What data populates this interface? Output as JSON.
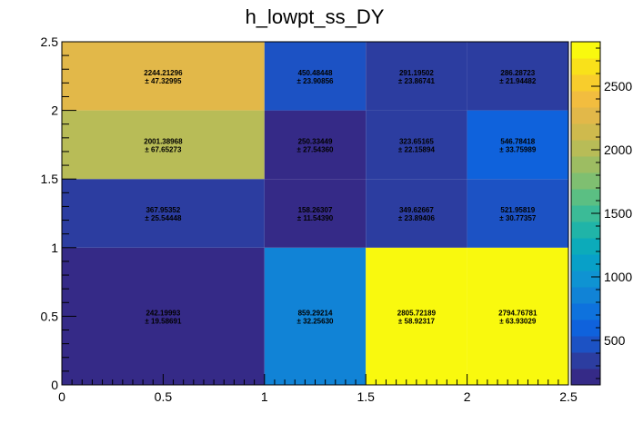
{
  "chart_data": {
    "type": "heatmap",
    "title": "h_lowpt_ss_DY",
    "xlabel": "",
    "ylabel": "",
    "xlim": [
      0,
      2.5
    ],
    "ylim": [
      0,
      2.5
    ],
    "x_ticks": [
      "0",
      "0.5",
      "1",
      "1.5",
      "2",
      "2.5"
    ],
    "y_ticks": [
      "0",
      "0.5",
      "1",
      "1.5",
      "2",
      "2.5"
    ],
    "x_edges": [
      0,
      1,
      1.5,
      2,
      2.5
    ],
    "y_edges": [
      0,
      1,
      1.5,
      2,
      2.5
    ],
    "z_range": [
      150,
      2850
    ],
    "colorbar_ticks": [
      "500",
      "1000",
      "1500",
      "2000",
      "2500"
    ],
    "colorbar_tick_values": [
      500,
      1000,
      1500,
      2000,
      2500
    ],
    "palette": [
      "#352a87",
      "#2c3da0",
      "#1c52c4",
      "#0f62dc",
      "#0e72dd",
      "#1183d6",
      "#0f93d2",
      "#08a0c8",
      "#0cabba",
      "#20b4a8",
      "#3bbb97",
      "#5bbf83",
      "#7fbf71",
      "#9dbd62",
      "#b8bc57",
      "#cfba4d",
      "#e2b849",
      "#f2bd3f",
      "#f8cd2c",
      "#f9e11a",
      "#f9f90e"
    ],
    "cells": [
      {
        "xi": 0,
        "yi": 0,
        "value": "242.19993",
        "error": "± 19.58691",
        "z": 242.19993
      },
      {
        "xi": 1,
        "yi": 0,
        "value": "859.29214",
        "error": "± 32.25630",
        "z": 859.29214
      },
      {
        "xi": 2,
        "yi": 0,
        "value": "2805.72189",
        "error": "± 58.92317",
        "z": 2805.72189
      },
      {
        "xi": 3,
        "yi": 0,
        "value": "2794.76781",
        "error": "± 63.93029",
        "z": 2794.76781
      },
      {
        "xi": 0,
        "yi": 1,
        "value": "367.95352",
        "error": "± 25.54448",
        "z": 367.95352
      },
      {
        "xi": 1,
        "yi": 1,
        "value": "158.26307",
        "error": "± 11.54390",
        "z": 158.26307
      },
      {
        "xi": 2,
        "yi": 1,
        "value": "349.62667",
        "error": "± 23.89406",
        "z": 349.62667
      },
      {
        "xi": 3,
        "yi": 1,
        "value": "521.95819",
        "error": "± 30.77357",
        "z": 521.95819
      },
      {
        "xi": 0,
        "yi": 2,
        "value": "2001.38968",
        "error": "± 67.65273",
        "z": 2001.38968
      },
      {
        "xi": 1,
        "yi": 2,
        "value": "250.33449",
        "error": "± 27.54360",
        "z": 250.33449
      },
      {
        "xi": 2,
        "yi": 2,
        "value": "323.65165",
        "error": "± 22.15894",
        "z": 323.65165
      },
      {
        "xi": 3,
        "yi": 2,
        "value": "546.78418",
        "error": "± 33.75989",
        "z": 546.78418
      },
      {
        "xi": 0,
        "yi": 3,
        "value": "2244.21296",
        "error": "± 47.32995",
        "z": 2244.21296
      },
      {
        "xi": 1,
        "yi": 3,
        "value": "450.48448",
        "error": "± 23.90856",
        "z": 450.48448
      },
      {
        "xi": 2,
        "yi": 3,
        "value": "291.19502",
        "error": "± 23.86741",
        "z": 291.19502
      },
      {
        "xi": 3,
        "yi": 3,
        "value": "286.28723",
        "error": "± 21.94482",
        "z": 286.28723
      }
    ]
  }
}
